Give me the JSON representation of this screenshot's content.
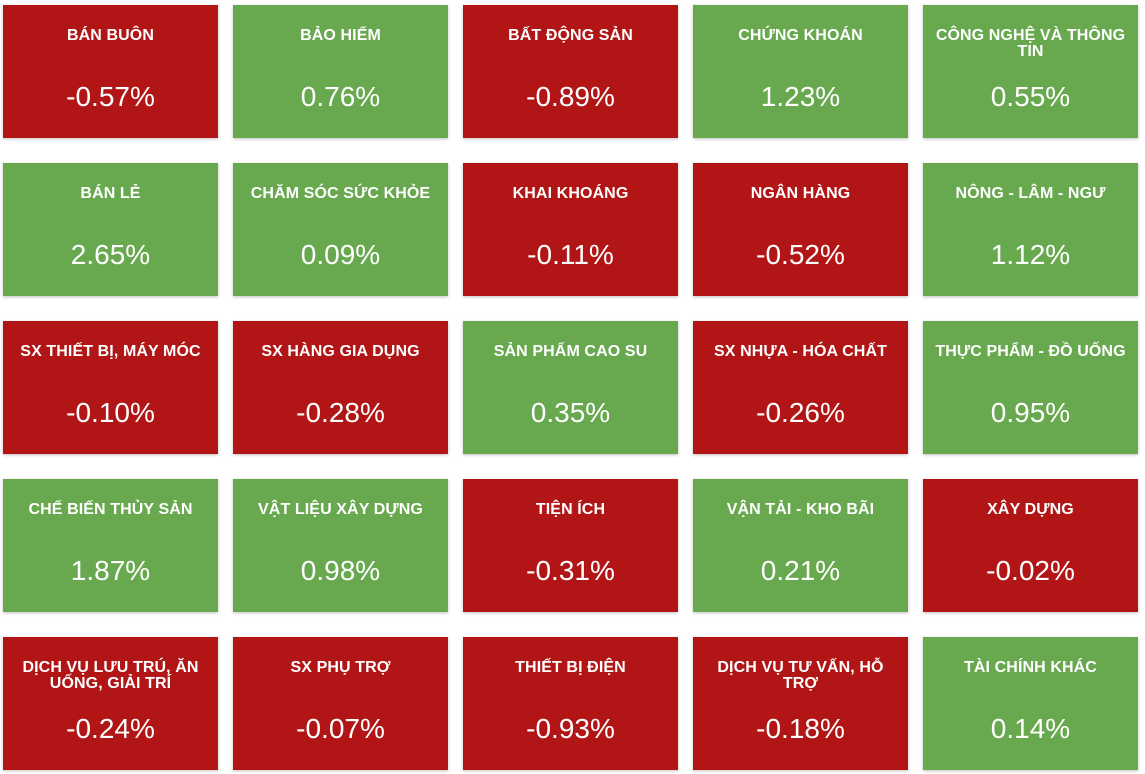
{
  "colors": {
    "negative": "#b21515",
    "positive": "#68a94f",
    "text": "#ffffff"
  },
  "sectors": [
    {
      "name": "BÁN BUÔN",
      "change": "-0.57%",
      "trend": "down"
    },
    {
      "name": "BẢO HIỂM",
      "change": "0.76%",
      "trend": "up"
    },
    {
      "name": "BẤT ĐỘNG SẢN",
      "change": "-0.89%",
      "trend": "down"
    },
    {
      "name": "CHỨNG KHOÁN",
      "change": "1.23%",
      "trend": "up"
    },
    {
      "name": "CÔNG NGHỆ VÀ THÔNG TIN",
      "change": "0.55%",
      "trend": "up"
    },
    {
      "name": "BÁN LẺ",
      "change": "2.65%",
      "trend": "up"
    },
    {
      "name": "CHĂM SÓC SỨC KHỎE",
      "change": "0.09%",
      "trend": "up"
    },
    {
      "name": "KHAI KHOÁNG",
      "change": "-0.11%",
      "trend": "down"
    },
    {
      "name": "NGÂN HÀNG",
      "change": "-0.52%",
      "trend": "down"
    },
    {
      "name": "NÔNG - LÂM - NGƯ",
      "change": "1.12%",
      "trend": "up"
    },
    {
      "name": "SX THIẾT BỊ, MÁY MÓC",
      "change": "-0.10%",
      "trend": "down"
    },
    {
      "name": "SX HÀNG GIA DỤNG",
      "change": "-0.28%",
      "trend": "down"
    },
    {
      "name": "SẢN PHẨM CAO SU",
      "change": "0.35%",
      "trend": "up"
    },
    {
      "name": "SX NHỰA - HÓA CHẤT",
      "change": "-0.26%",
      "trend": "down"
    },
    {
      "name": "THỰC PHẨM - ĐỒ UỐNG",
      "change": "0.95%",
      "trend": "up"
    },
    {
      "name": "CHẾ BIẾN THỦY SẢN",
      "change": "1.87%",
      "trend": "up"
    },
    {
      "name": "VẬT LIỆU XÂY DỰNG",
      "change": "0.98%",
      "trend": "up"
    },
    {
      "name": "TIỆN ÍCH",
      "change": "-0.31%",
      "trend": "down"
    },
    {
      "name": "VẬN TẢI - KHO BÃI",
      "change": "0.21%",
      "trend": "up"
    },
    {
      "name": "XÂY DỰNG",
      "change": "-0.02%",
      "trend": "down"
    },
    {
      "name": "DỊCH VỤ LƯU TRÚ, ĂN UỐNG, GIẢI TRÍ",
      "change": "-0.24%",
      "trend": "down"
    },
    {
      "name": "SX PHỤ TRỢ",
      "change": "-0.07%",
      "trend": "down"
    },
    {
      "name": "THIẾT BỊ ĐIỆN",
      "change": "-0.93%",
      "trend": "down"
    },
    {
      "name": "DỊCH VỤ TƯ VẤN, HỖ TRỢ",
      "change": "-0.18%",
      "trend": "down"
    },
    {
      "name": "TÀI CHÍNH KHÁC",
      "change": "0.14%",
      "trend": "up"
    }
  ]
}
